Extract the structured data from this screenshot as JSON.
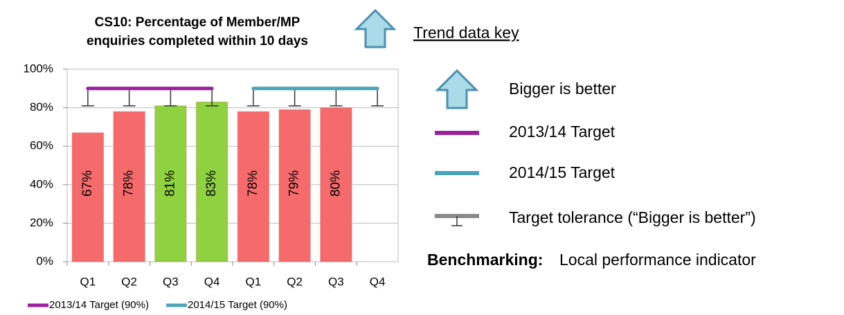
{
  "chart_data": {
    "type": "bar",
    "title": [
      "CS10: Percentage of Member/MP",
      "enquiries completed within 10 days"
    ],
    "categories": [
      "Q1",
      "Q2",
      "Q3",
      "Q4",
      "Q1",
      "Q2",
      "Q3",
      "Q4"
    ],
    "values": [
      67,
      78,
      81,
      83,
      78,
      79,
      80,
      null
    ],
    "value_labels": [
      "67%",
      "78%",
      "81%",
      "83%",
      "78%",
      "79%",
      "80%",
      null
    ],
    "colors": [
      "#f56b6b",
      "#f56b6b",
      "#8fd13f",
      "#8fd13f",
      "#f56b6b",
      "#f56b6b",
      "#f56b6b",
      null
    ],
    "targets": [
      {
        "name": "2013/14 Target (90%)",
        "color": "#9b1f9f",
        "values": [
          90,
          90,
          90,
          90,
          null,
          null,
          null,
          null
        ]
      },
      {
        "name": "2014/15 Target (90%)",
        "color": "#4ba3b9",
        "values": [
          null,
          null,
          null,
          null,
          90,
          90,
          90,
          90
        ]
      }
    ],
    "tolerance": [
      81,
      81,
      81,
      81,
      81,
      81,
      81,
      81
    ],
    "ylim": [
      0,
      100
    ],
    "yticks": [
      {
        "value": 0,
        "label": "0%"
      },
      {
        "value": 20,
        "label": "20%"
      },
      {
        "value": 40,
        "label": "40%"
      },
      {
        "value": 60,
        "label": "60%"
      },
      {
        "value": 80,
        "label": "80%"
      },
      {
        "value": 100,
        "label": "100%"
      }
    ],
    "grid": true
  },
  "key": {
    "heading": "Trend data key",
    "items": [
      "Bigger is better",
      "2013/14 Target",
      "2014/15 Target",
      "Target tolerance (“Bigger is better”)"
    ],
    "benchmarking_label": "Benchmarking:",
    "benchmarking_value": "Local performance indicator"
  }
}
